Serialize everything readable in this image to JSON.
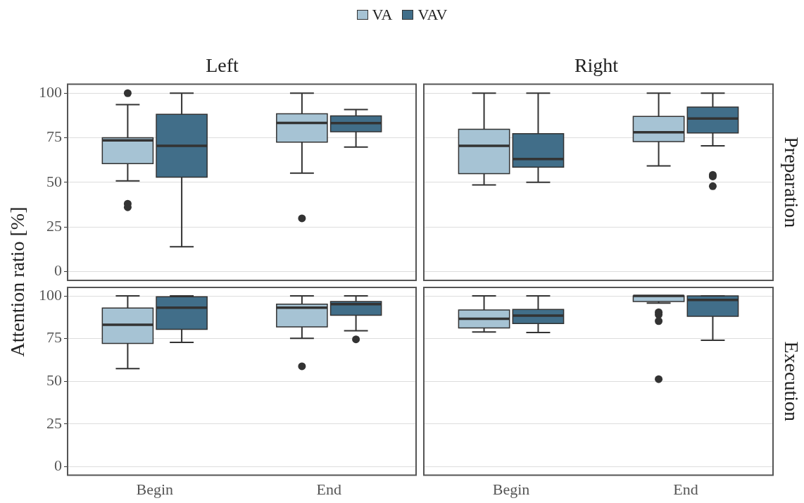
{
  "chart_data": [
    {
      "type": "box",
      "title": "Left",
      "ylabel": "Attention ratio [%]",
      "legend": "top",
      "grid": "y",
      "tick_labels": "y",
      "categories": [
        "Begin",
        "End"
      ],
      "ylim": [
        -5,
        105
      ],
      "yticks": [
        0,
        25,
        50,
        75,
        100
      ],
      "series": [
        {
          "name": "VA",
          "color": "#a6c3d4",
          "boxes": [
            {
              "low": 50.8,
              "q1": 60.5,
              "median": 73.5,
              "q3": 75,
              "high": 93.6,
              "outliers": [
                100,
                38,
                36
              ]
            },
            {
              "low": 55.2,
              "q1": 72.5,
              "median": 83.3,
              "q3": 88.4,
              "high": 100,
              "outliers": [
                29.8
              ]
            }
          ]
        },
        {
          "name": "VAV",
          "color": "#416e89",
          "boxes": [
            {
              "low": 13.9,
              "q1": 52.9,
              "median": 70.5,
              "q3": 88.1,
              "high": 100
            },
            {
              "low": 69.8,
              "q1": 78.4,
              "median": 83.2,
              "q3": 87.3,
              "high": 90.8
            }
          ]
        }
      ]
    },
    {
      "type": "box",
      "title": "Right",
      "annotations": [
        "Preparation"
      ],
      "grid": "y",
      "tick_labels": false,
      "categories": [
        "Begin",
        "End"
      ],
      "ylim": [
        -5,
        105
      ],
      "yticks": [
        0,
        25,
        50,
        75,
        100
      ],
      "series": [
        {
          "color": "#a6c3d4",
          "boxes": [
            {
              "low": 48.5,
              "q1": 54.9,
              "median": 70.5,
              "q3": 79.8,
              "high": 100
            },
            {
              "low": 59.2,
              "q1": 72.8,
              "median": 78.1,
              "q3": 87,
              "high": 100
            }
          ]
        },
        {
          "color": "#416e89",
          "boxes": [
            {
              "low": 50,
              "q1": 58.5,
              "median": 63.1,
              "q3": 77.3,
              "high": 100
            },
            {
              "low": 70.5,
              "q1": 77.7,
              "median": 85.8,
              "q3": 92.2,
              "high": 100,
              "outliers": [
                54.2,
                53.3,
                47.8
              ]
            }
          ]
        }
      ]
    },
    {
      "type": "box",
      "grid": "y",
      "categories": [
        "Begin",
        "End"
      ],
      "ylim": [
        -5,
        105
      ],
      "yticks": [
        0,
        25,
        50,
        75,
        100
      ],
      "series": [
        {
          "color": "#a6c3d4",
          "boxes": [
            {
              "low": 57.4,
              "q1": 72.2,
              "median": 83.1,
              "q3": 92.9,
              "high": 100
            },
            {
              "low": 75.2,
              "q1": 81.9,
              "median": 93.1,
              "q3": 95.2,
              "high": 100,
              "outliers": [
                58.8
              ]
            }
          ]
        },
        {
          "color": "#416e89",
          "boxes": [
            {
              "low": 72.8,
              "q1": 80.5,
              "median": 93.1,
              "q3": 99.5,
              "high": 100
            },
            {
              "low": 79.6,
              "q1": 88.7,
              "median": 95.2,
              "q3": 96.7,
              "high": 100,
              "outliers": [
                74.6
              ]
            }
          ]
        }
      ]
    },
    {
      "type": "box",
      "annotations": [
        "Execution"
      ],
      "grid": "y",
      "tick_labels": "x",
      "categories": [
        "Begin",
        "End"
      ],
      "ylim": [
        -5,
        105
      ],
      "yticks": [
        0,
        25,
        50,
        75,
        100
      ],
      "series": [
        {
          "color": "#a6c3d4",
          "boxes": [
            {
              "low": 78.9,
              "q1": 81.3,
              "median": 86.6,
              "q3": 91.8,
              "high": 100
            },
            {
              "low": 95.8,
              "q1": 96.7,
              "median": 100,
              "q3": 100,
              "high": 100,
              "outliers": [
                90.5,
                89.1,
                85.3,
                51.3
              ]
            }
          ]
        },
        {
          "color": "#416e89",
          "boxes": [
            {
              "low": 78.6,
              "q1": 83.9,
              "median": 88.5,
              "q3": 92.1,
              "high": 100
            },
            {
              "low": 74.1,
              "q1": 88.1,
              "median": 97.7,
              "q3": 100,
              "high": 100
            }
          ]
        }
      ]
    }
  ]
}
